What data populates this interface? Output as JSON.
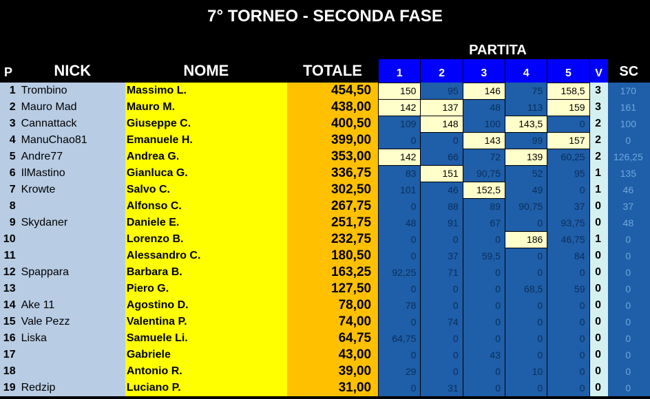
{
  "title": "7° TORNEO  - SECONDA FASE",
  "headers": {
    "p": "P",
    "nick": "NICK",
    "nome": "NOME",
    "totale": "TOTALE",
    "partita": "PARTITA",
    "games": [
      "1",
      "2",
      "3",
      "4",
      "5"
    ],
    "v": "V",
    "sc": "SC"
  },
  "colors": {
    "bg": "#000000",
    "header_text": "#ffffff",
    "game_header_bg": "#0000ff",
    "p_nick_bg": "#b8cce4",
    "nome_bg": "#ffff00",
    "totale_bg": "#ffc000",
    "game_cell_bg": "#1f5ea8",
    "game_cell_text": "#0a2f5a",
    "highlight_bg": "#ffffcc",
    "v_bg": "#d5f0f0",
    "sc_bg": "#1f5ea8",
    "sc_text": "#6fa8dc"
  },
  "fonts": {
    "title_size": 24,
    "header_main": 22,
    "header_small": 18,
    "row": 16,
    "totale": 19,
    "game": 14
  },
  "rows": [
    {
      "p": "1",
      "nick": "Trombino",
      "nome": "Massimo L.",
      "tot": "454,50",
      "g": [
        "150",
        "95",
        "146",
        "75",
        "158,5"
      ],
      "hl": [
        true,
        false,
        true,
        false,
        true
      ],
      "v": "3",
      "sc": "170"
    },
    {
      "p": "2",
      "nick": "Mauro Mad",
      "nome": "Mauro M.",
      "tot": "438,00",
      "g": [
        "142",
        "137",
        "48",
        "113",
        "159"
      ],
      "hl": [
        true,
        true,
        false,
        false,
        true
      ],
      "v": "3",
      "sc": "161"
    },
    {
      "p": "3",
      "nick": "Cannattack",
      "nome": "Giuseppe C.",
      "tot": "400,50",
      "g": [
        "109",
        "148",
        "100",
        "143,5",
        "0"
      ],
      "hl": [
        false,
        true,
        false,
        true,
        false
      ],
      "v": "2",
      "sc": "100"
    },
    {
      "p": "4",
      "nick": "ManuChao81",
      "nome": "Emanuele H.",
      "tot": "399,00",
      "g": [
        "0",
        "0",
        "143",
        "99",
        "157"
      ],
      "hl": [
        false,
        false,
        true,
        false,
        true
      ],
      "v": "2",
      "sc": "0"
    },
    {
      "p": "5",
      "nick": "Andre77",
      "nome": "Andrea G.",
      "tot": "353,00",
      "g": [
        "142",
        "66",
        "72",
        "139",
        "60,25"
      ],
      "hl": [
        true,
        false,
        false,
        true,
        false
      ],
      "v": "2",
      "sc": "126,25"
    },
    {
      "p": "6",
      "nick": "IlMastino",
      "nome": "Gianluca G.",
      "tot": "336,75",
      "g": [
        "83",
        "151",
        "90,75",
        "52",
        "95"
      ],
      "hl": [
        false,
        true,
        false,
        false,
        false
      ],
      "v": "1",
      "sc": "135"
    },
    {
      "p": "7",
      "nick": "Krowte",
      "nome": "Salvo C.",
      "tot": "302,50",
      "g": [
        "101",
        "46",
        "152,5",
        "49",
        "0"
      ],
      "hl": [
        false,
        false,
        true,
        false,
        false
      ],
      "v": "1",
      "sc": "46"
    },
    {
      "p": "8",
      "nick": "",
      "nome": "Alfonso C.",
      "tot": "267,75",
      "g": [
        "0",
        "88",
        "89",
        "90,75",
        "37"
      ],
      "hl": [
        false,
        false,
        false,
        false,
        false
      ],
      "v": "0",
      "sc": "37"
    },
    {
      "p": "9",
      "nick": "Skydaner",
      "nome": "Daniele E.",
      "tot": "251,75",
      "g": [
        "48",
        "91",
        "67",
        "0",
        "93,75"
      ],
      "hl": [
        false,
        false,
        false,
        false,
        false
      ],
      "v": "0",
      "sc": "48"
    },
    {
      "p": "10",
      "nick": "",
      "nome": "Lorenzo B.",
      "tot": "232,75",
      "g": [
        "0",
        "0",
        "0",
        "186",
        "46,75"
      ],
      "hl": [
        false,
        false,
        false,
        true,
        false
      ],
      "v": "1",
      "sc": "0"
    },
    {
      "p": "11",
      "nick": "",
      "nome": "Alessandro C.",
      "tot": "180,50",
      "g": [
        "0",
        "37",
        "59,5",
        "0",
        "84"
      ],
      "hl": [
        false,
        false,
        false,
        false,
        false
      ],
      "v": "0",
      "sc": "0"
    },
    {
      "p": "12",
      "nick": "Spappara",
      "nome": "Barbara B.",
      "tot": "163,25",
      "g": [
        "92,25",
        "71",
        "0",
        "0",
        "0"
      ],
      "hl": [
        false,
        false,
        false,
        false,
        false
      ],
      "v": "0",
      "sc": "0"
    },
    {
      "p": "13",
      "nick": "",
      "nome": "Piero G.",
      "tot": "127,50",
      "g": [
        "0",
        "0",
        "0",
        "68,5",
        "59"
      ],
      "hl": [
        false,
        false,
        false,
        false,
        false
      ],
      "v": "0",
      "sc": "0"
    },
    {
      "p": "14",
      "nick": "Ake 11",
      "nome": "Agostino D.",
      "tot": "78,00",
      "g": [
        "78",
        "0",
        "0",
        "0",
        "0"
      ],
      "hl": [
        false,
        false,
        false,
        false,
        false
      ],
      "v": "0",
      "sc": "0"
    },
    {
      "p": "15",
      "nick": "Vale Pezz",
      "nome": "Valentina P.",
      "tot": "74,00",
      "g": [
        "0",
        "74",
        "0",
        "0",
        "0"
      ],
      "hl": [
        false,
        false,
        false,
        false,
        false
      ],
      "v": "0",
      "sc": "0"
    },
    {
      "p": "16",
      "nick": "Liska",
      "nome": "Samuele Li.",
      "tot": "64,75",
      "g": [
        "64,75",
        "0",
        "0",
        "0",
        "0"
      ],
      "hl": [
        false,
        false,
        false,
        false,
        false
      ],
      "v": "0",
      "sc": "0"
    },
    {
      "p": "17",
      "nick": "",
      "nome": "Gabriele",
      "tot": "43,00",
      "g": [
        "0",
        "0",
        "43",
        "0",
        "0"
      ],
      "hl": [
        false,
        false,
        false,
        false,
        false
      ],
      "v": "0",
      "sc": "0"
    },
    {
      "p": "18",
      "nick": "",
      "nome": "Antonio R.",
      "tot": "39,00",
      "g": [
        "29",
        "0",
        "0",
        "10",
        "0"
      ],
      "hl": [
        false,
        false,
        false,
        false,
        false
      ],
      "v": "0",
      "sc": "0"
    },
    {
      "p": "19",
      "nick": "Redzip",
      "nome": "Luciano P.",
      "tot": "31,00",
      "g": [
        "0",
        "31",
        "0",
        "0",
        "0"
      ],
      "hl": [
        false,
        false,
        false,
        false,
        false
      ],
      "v": "0",
      "sc": "0"
    }
  ]
}
